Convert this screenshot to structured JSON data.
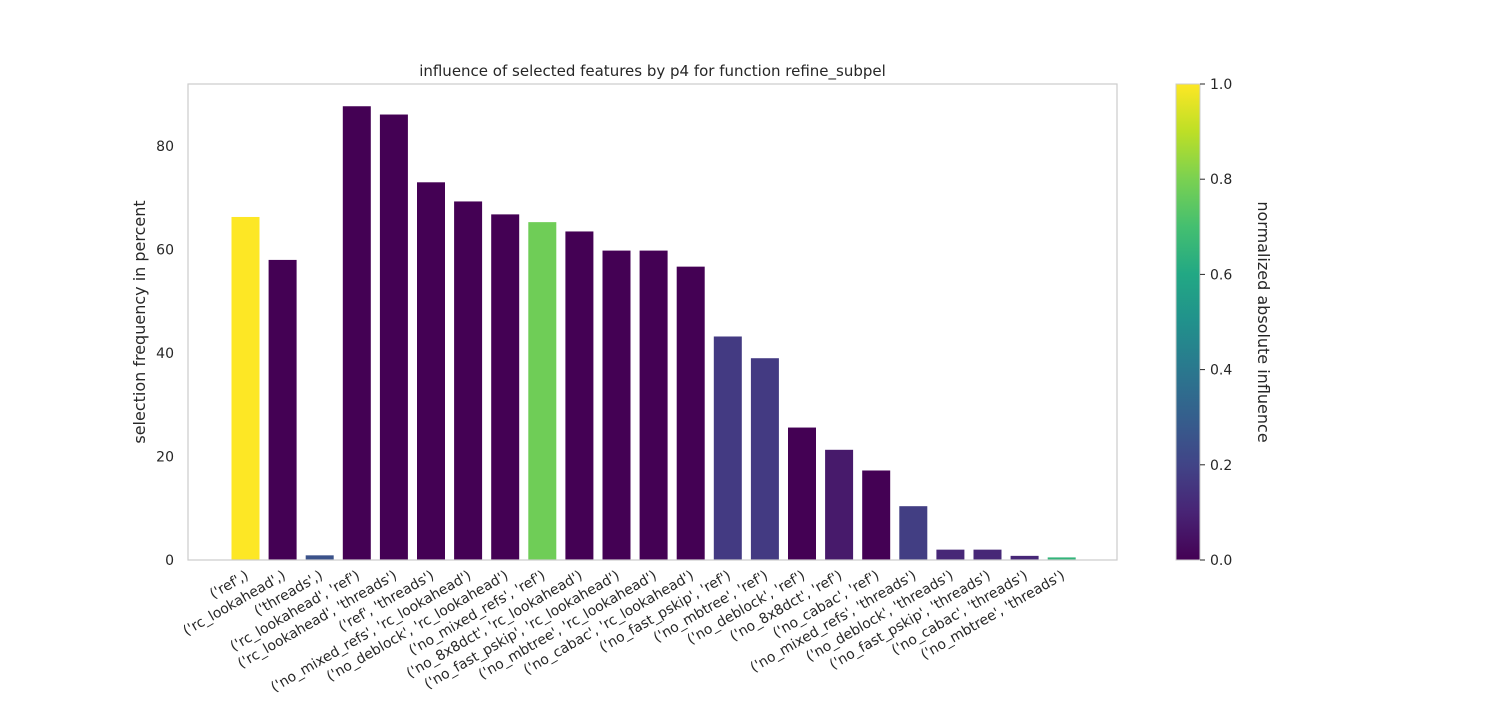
{
  "chart_data": {
    "type": "bar",
    "title": "influence of selected features by p4 for function refine_subpel",
    "xlabel": "",
    "ylabel": "selection frequency in percent",
    "ylim": [
      0,
      92
    ],
    "yticks": [
      0,
      20,
      40,
      60,
      80
    ],
    "grid": false,
    "categories": [
      "('ref',)",
      "('rc_lookahead',)",
      "('threads',)",
      "('rc_lookahead', 'ref')",
      "('rc_lookahead', 'threads')",
      "('ref', 'threads')",
      "('no_mixed_refs', 'rc_lookahead')",
      "('no_deblock', 'rc_lookahead')",
      "('no_mixed_refs', 'ref')",
      "('no_8x8dct', 'rc_lookahead')",
      "('no_fast_pskip', 'rc_lookahead')",
      "('no_mbtree', 'rc_lookahead')",
      "('no_cabac', 'rc_lookahead')",
      "('no_fast_pskip', 'ref')",
      "('no_mbtree', 'ref')",
      "('no_deblock', 'ref')",
      "('no_8x8dct', 'ref')",
      "('no_cabac', 'ref')",
      "('no_mixed_refs', 'threads')",
      "('no_deblock', 'threads')",
      "('no_fast_pskip', 'threads')",
      "('no_cabac', 'threads')",
      "('no_mbtree', 'threads')"
    ],
    "values": [
      66.3,
      58.0,
      0.9,
      87.7,
      86.1,
      73.0,
      69.3,
      66.8,
      65.3,
      63.5,
      59.8,
      59.8,
      56.7,
      43.2,
      39.0,
      25.6,
      21.3,
      17.3,
      10.4,
      2.0,
      2.0,
      0.8,
      0.5
    ],
    "influence": [
      1.0,
      0.0,
      0.25,
      0.0,
      0.0,
      0.0,
      0.0,
      0.0,
      0.78,
      0.0,
      0.0,
      0.0,
      0.0,
      0.17,
      0.17,
      0.0,
      0.07,
      0.0,
      0.18,
      0.11,
      0.11,
      0.11,
      0.65
    ],
    "colorbar": {
      "label": "normalized absolute influence",
      "range": [
        0,
        1
      ],
      "ticks": [
        "0.0",
        "0.2",
        "0.4",
        "0.6",
        "0.8",
        "1.0"
      ],
      "colormap": "viridis"
    }
  }
}
